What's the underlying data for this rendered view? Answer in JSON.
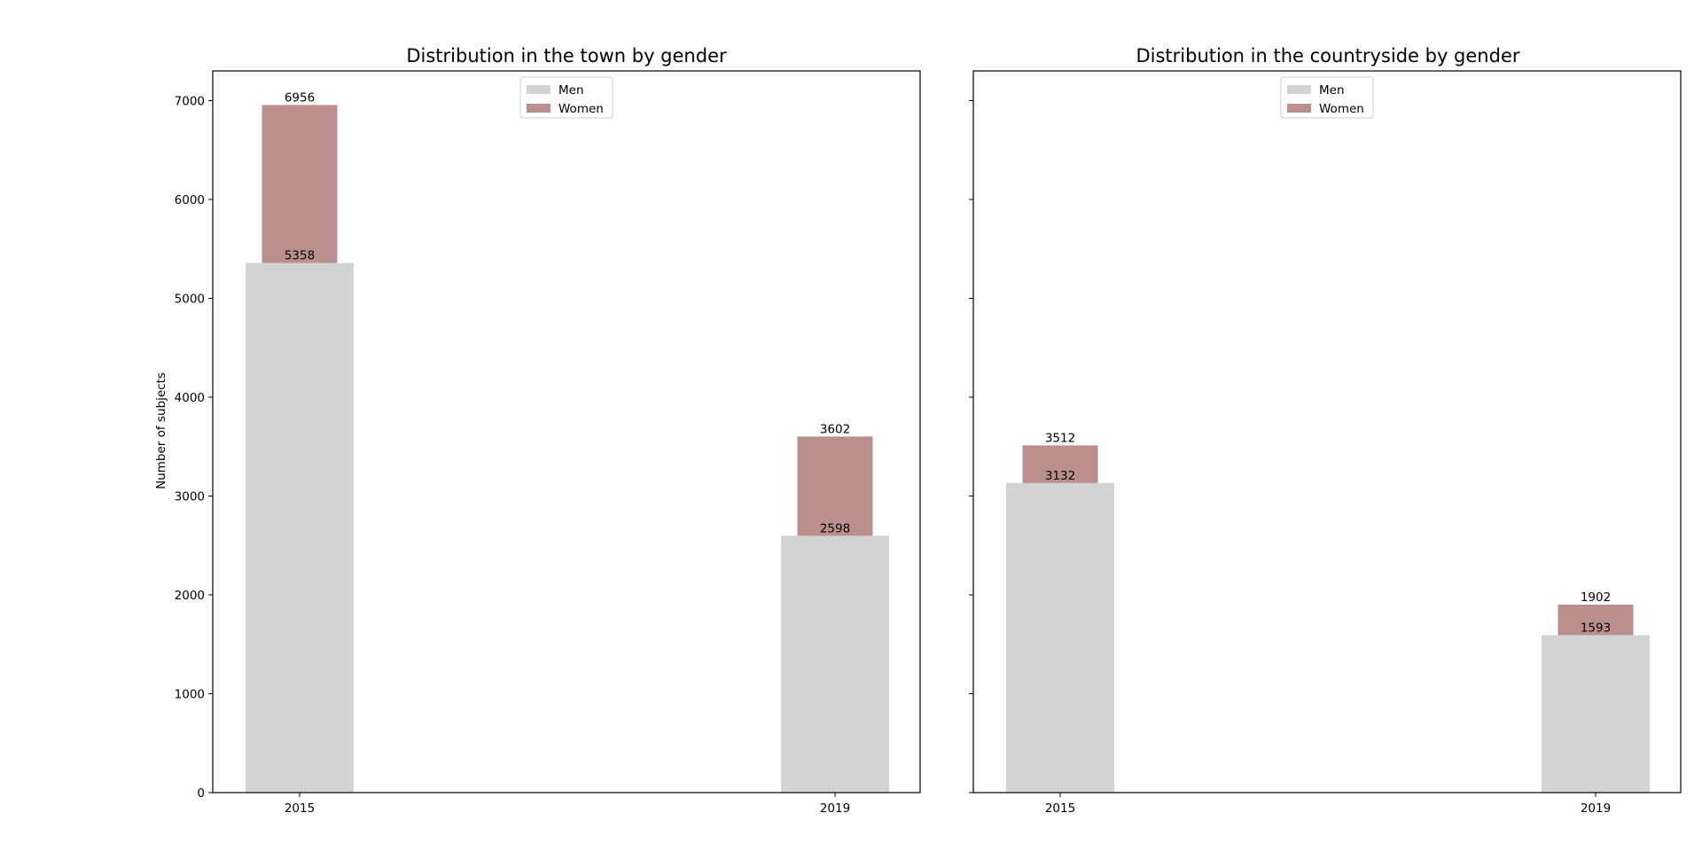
{
  "chart_data": [
    {
      "type": "bar",
      "title": "Distribution in the town by gender",
      "ylabel": "Number of subjects",
      "xlabel": "",
      "categories": [
        "2015",
        "2019"
      ],
      "ylim": [
        0,
        7300
      ],
      "yticks": [
        0,
        1000,
        2000,
        3000,
        4000,
        5000,
        6000,
        7000
      ],
      "legend": {
        "position": "upper-center"
      },
      "series": [
        {
          "name": "Men",
          "values": [
            5358,
            2598
          ],
          "color": "#d3d3d3"
        },
        {
          "name": "Women",
          "values": [
            6956,
            3602
          ],
          "color": "#bc8f8f"
        }
      ]
    },
    {
      "type": "bar",
      "title": "Distribution in the countryside by gender",
      "ylabel": "",
      "xlabel": "",
      "categories": [
        "2015",
        "2019"
      ],
      "ylim": [
        0,
        7300
      ],
      "yticks": [
        0,
        1000,
        2000,
        3000,
        4000,
        5000,
        6000,
        7000
      ],
      "legend": {
        "position": "upper-center"
      },
      "series": [
        {
          "name": "Men",
          "values": [
            3132,
            1593
          ],
          "color": "#d3d3d3"
        },
        {
          "name": "Women",
          "values": [
            3512,
            1902
          ],
          "color": "#bc8f8f"
        }
      ]
    }
  ]
}
